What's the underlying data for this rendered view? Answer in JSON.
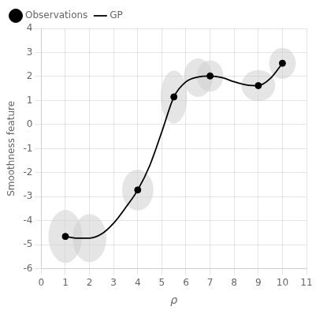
{
  "chart_data": {
    "type": "line",
    "xlabel": "ρ",
    "ylabel": "Smoothness feature",
    "series": [
      {
        "name": "GP",
        "type": "line",
        "color": "#000000",
        "x": [
          1.0,
          1.5,
          2.0,
          2.5,
          3.0,
          3.5,
          4.0,
          4.5,
          5.0,
          5.5,
          6.0,
          6.5,
          7.0,
          7.5,
          8.0,
          8.5,
          9.0,
          9.5,
          10.0
        ],
        "values": [
          -4.65,
          -4.72,
          -4.72,
          -4.55,
          -4.1,
          -3.45,
          -2.72,
          -1.7,
          -0.3,
          1.15,
          1.78,
          1.98,
          2.02,
          1.95,
          1.78,
          1.65,
          1.62,
          1.92,
          2.55
        ]
      },
      {
        "name": "Observations",
        "type": "scatter",
        "color": "#000000",
        "x": [
          1.0,
          4.0,
          5.5,
          7.0,
          9.0,
          10.0
        ],
        "values": [
          -4.65,
          -2.72,
          1.15,
          2.02,
          1.62,
          2.55
        ]
      }
    ],
    "ellipses": {
      "color": "#d0d0d0",
      "cx": [
        1.0,
        2.0,
        4.0,
        5.5,
        6.5,
        7.0,
        9.0,
        10.0
      ],
      "cy": [
        -4.65,
        -4.72,
        -2.72,
        1.15,
        1.95,
        2.02,
        1.62,
        2.55
      ],
      "rx": [
        0.7,
        0.7,
        0.65,
        0.55,
        0.6,
        0.55,
        0.7,
        0.55
      ],
      "ry": [
        1.1,
        1.0,
        0.85,
        1.1,
        0.8,
        0.65,
        0.65,
        0.65
      ]
    },
    "xlim": [
      0,
      11
    ],
    "xticks": [
      0,
      1,
      2,
      3,
      4,
      5,
      6,
      7,
      8,
      9,
      10,
      11
    ],
    "ylim": [
      -6,
      4
    ],
    "yticks": [
      -6,
      -5,
      -4,
      -3,
      -2,
      -1,
      0,
      1,
      2,
      3,
      4
    ],
    "grid": true,
    "legend": "upper left"
  }
}
